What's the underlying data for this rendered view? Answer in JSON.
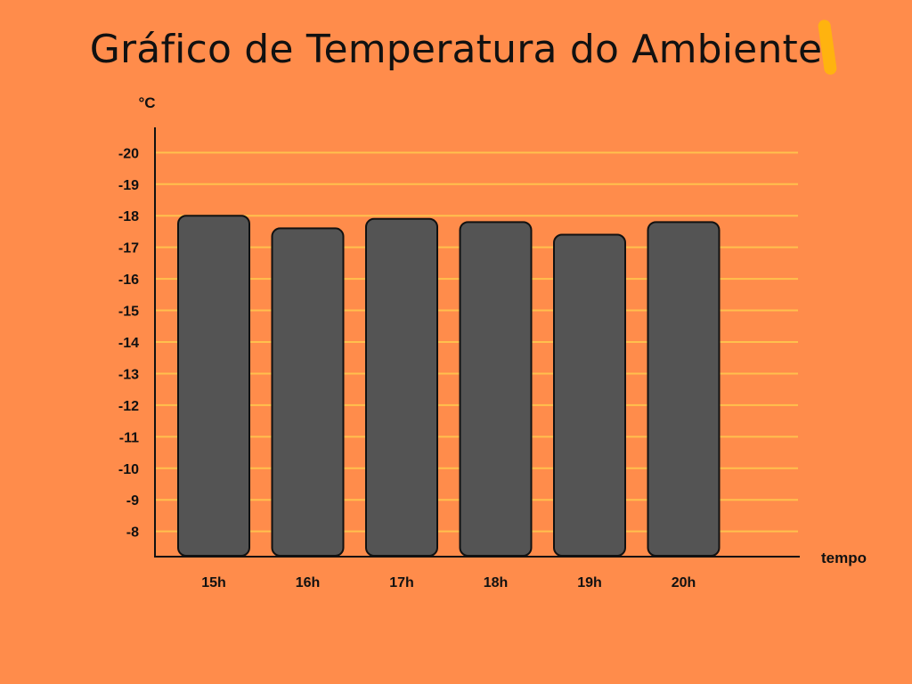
{
  "chart_data": {
    "type": "bar",
    "title": "Gráfico de Temperatura do Ambiente",
    "ylabel": "°C",
    "xlabel": "tempo",
    "categories": [
      "15h",
      "16h",
      "17h",
      "18h",
      "19h",
      "20h"
    ],
    "values": [
      -18.0,
      -17.6,
      -17.9,
      -17.8,
      -17.4,
      -17.8
    ],
    "y_ticks": [
      -8,
      -9,
      -10,
      -11,
      -12,
      -13,
      -14,
      -15,
      -16,
      -17,
      -18,
      -19,
      -20
    ],
    "y_tick_labels": [
      "-8",
      "-9",
      "-10",
      "-11",
      "-12",
      "-13",
      "-14",
      "-15",
      "-16",
      "-17",
      "-18",
      "-19",
      "-20"
    ],
    "ylim": [
      -7.2,
      -20.8
    ],
    "grid": true,
    "colors": {
      "background": "#FF8C4B",
      "bar": "#545454",
      "grid": "#FFC04D",
      "accent": "#FFB30F"
    }
  }
}
